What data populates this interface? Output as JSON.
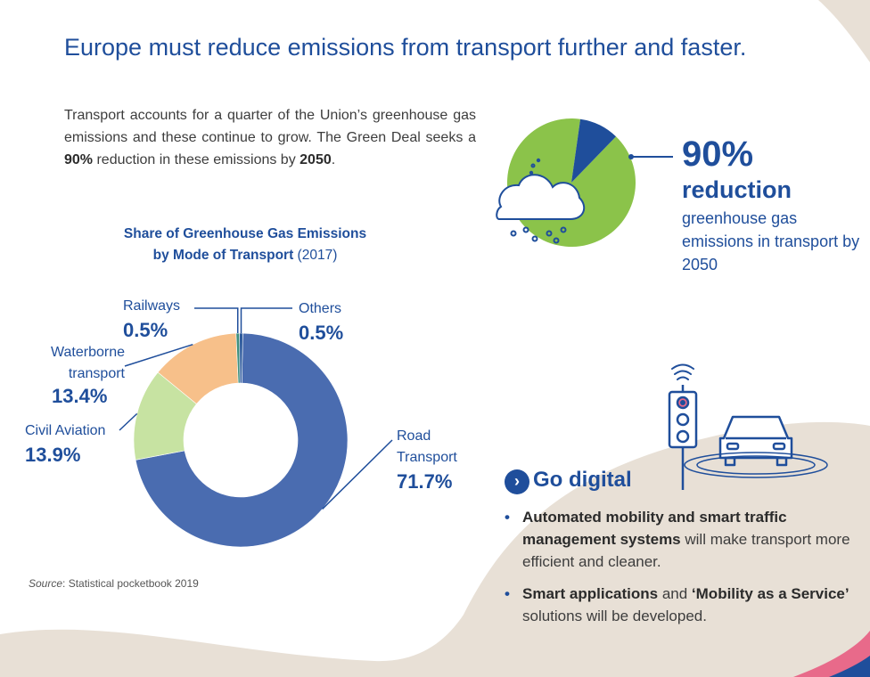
{
  "page": {
    "title": "Europe must reduce emissions from transport further and faster.",
    "intro": {
      "part1": "Transport accounts for a quarter of the Union’s greenhouse gas emissions and these continue to grow. The Green Deal seeks a ",
      "bold1": "90%",
      "part2": " reduction in these emissions by ",
      "bold2": "2050",
      "part3": "."
    },
    "source_label": "Source",
    "source_text": ": Statistical pocketbook 2019"
  },
  "target": {
    "pct": "90%",
    "word": "reduction",
    "desc": "greenhouse gas emissions in transport by 2050",
    "reduction_share": 0.9,
    "colors": {
      "remaining": "#8bc34a",
      "reduced": "#1f4e9b"
    }
  },
  "digital": {
    "heading": "Go digital",
    "bullet1_bold": "Automated mobility and smart traffic management systems",
    "bullet1_rest": " will make transport more efficient and cleaner.",
    "bullet2_bold1": "Smart applications",
    "bullet2_mid": " and ",
    "bullet2_bold2": "‘Mobility as a Service’",
    "bullet2_rest": " solutions will be developed."
  },
  "chart_data": {
    "type": "pie",
    "title": "Share of Greenhouse Gas Emissions by Mode of Transport",
    "title_line1": "Share of Greenhouse Gas Emissions",
    "title_line2": "by Mode of Transport",
    "year": "(2017)",
    "unit": "%",
    "categories": [
      "Road Transport",
      "Civil Aviation",
      "Waterborne transport",
      "Railways",
      "Others"
    ],
    "values": [
      71.7,
      13.9,
      13.4,
      0.5,
      0.5
    ],
    "value_labels": [
      "71.7%",
      "13.9%",
      "13.4%",
      "0.5%",
      "0.5%"
    ],
    "label_lines": [
      [
        "Road",
        "Transport"
      ],
      [
        "Civil Aviation"
      ],
      [
        "Waterborne",
        "transport"
      ],
      [
        "Railways"
      ],
      [
        "Others"
      ]
    ],
    "colors": [
      "#4a6cb0",
      "#c7e3a2",
      "#f7c08a",
      "#3f8f7e",
      "#2d5a9c"
    ],
    "donut": true
  }
}
